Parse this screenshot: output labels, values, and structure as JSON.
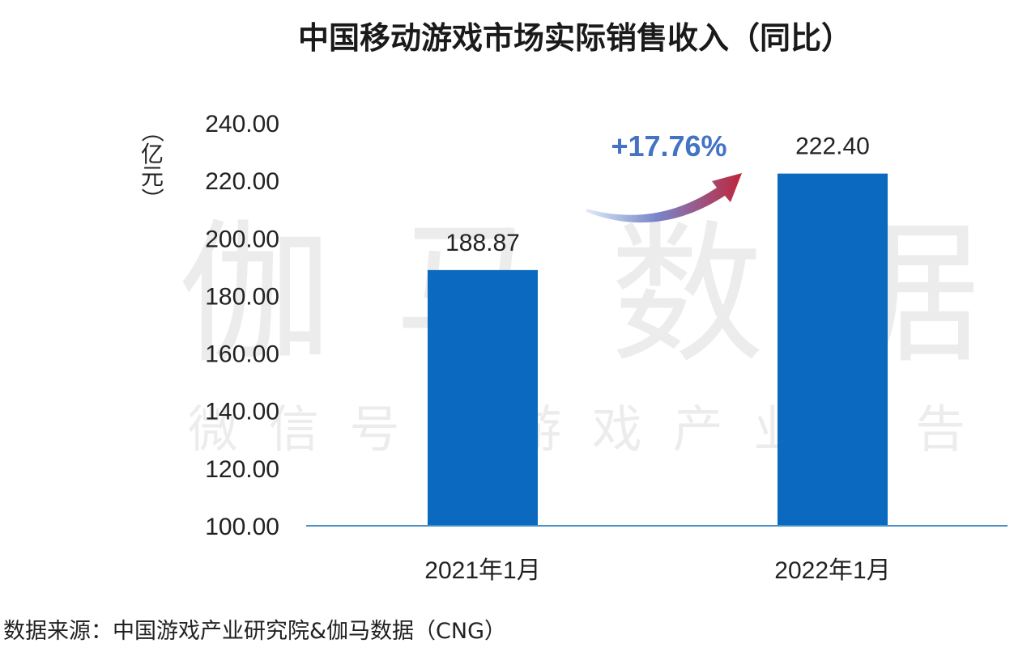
{
  "watermark": {
    "main": "伽马数据",
    "sub": "微信号：游戏产业报告"
  },
  "source": "数据来源：中国游戏产业研究院&伽马数据（CNG）",
  "colors": {
    "bar": "#0b6abf",
    "axis": "#4a90c8",
    "growth_text": "#4472c4",
    "arrow_start": "#4a78c4",
    "arrow_end": "#c0243a"
  },
  "chart_data": {
    "type": "bar",
    "title": "中国移动游戏市场实际销售收入（同比）",
    "ylabel": "（亿元）",
    "xlabel": "",
    "categories": [
      "2021年1月",
      "2022年1月"
    ],
    "values": [
      188.87,
      222.4
    ],
    "value_labels": [
      "188.87",
      "222.40"
    ],
    "ylim": [
      100,
      240
    ],
    "yticks": [
      "100.00",
      "120.00",
      "140.00",
      "160.00",
      "180.00",
      "200.00",
      "220.00",
      "240.00"
    ],
    "grid": false,
    "annotation": "+17.76%"
  }
}
